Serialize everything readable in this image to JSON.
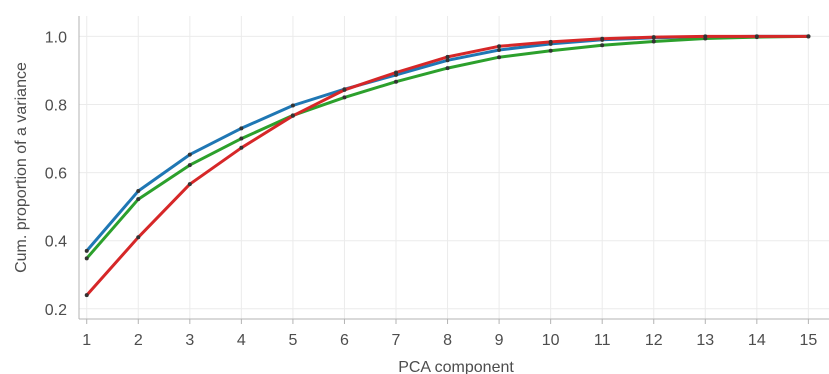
{
  "chart_data": {
    "type": "line",
    "title": "",
    "xlabel": "PCA component",
    "ylabel": "Cum. proportion of a variance",
    "x": [
      1,
      2,
      3,
      4,
      5,
      6,
      7,
      8,
      9,
      10,
      11,
      12,
      13,
      14,
      15
    ],
    "xlim": [
      0.85,
      15.4
    ],
    "ylim": [
      0.17,
      1.06
    ],
    "xticks": [
      1,
      2,
      3,
      4,
      5,
      6,
      7,
      8,
      9,
      10,
      11,
      12,
      13,
      14,
      15
    ],
    "yticks": [
      0.2,
      0.4,
      0.6,
      0.8,
      1.0
    ],
    "ytick_labels": [
      "0.2",
      "0.4",
      "0.6",
      "0.8",
      "1.0"
    ],
    "grid": true,
    "legend": "none",
    "series": [
      {
        "color": "#1f77b4",
        "values": [
          0.37,
          0.546,
          0.653,
          0.73,
          0.797,
          0.845,
          0.887,
          0.93,
          0.96,
          0.978,
          0.99,
          0.996,
          0.999,
          1.0,
          1.0
        ]
      },
      {
        "color": "#2ca02c",
        "values": [
          0.348,
          0.522,
          0.622,
          0.7,
          0.768,
          0.821,
          0.867,
          0.907,
          0.939,
          0.958,
          0.974,
          0.985,
          0.994,
          0.998,
          1.0
        ]
      },
      {
        "color": "#d62728",
        "values": [
          0.24,
          0.41,
          0.566,
          0.673,
          0.767,
          0.843,
          0.894,
          0.94,
          0.971,
          0.984,
          0.993,
          0.998,
          1.0,
          1.0,
          1.0
        ]
      }
    ]
  }
}
